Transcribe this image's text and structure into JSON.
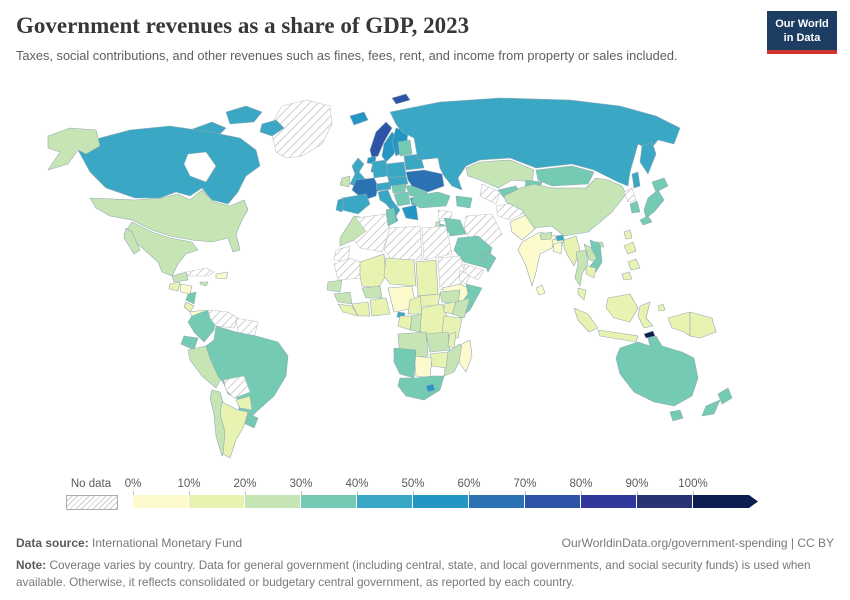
{
  "header": {
    "title": "Government revenues as a share of GDP, 2023",
    "subtitle": "Taxes, social contributions, and other revenues such as fines, fees, rent, and income from property or sales included.",
    "logo": {
      "line1": "Our World",
      "line2": "in Data"
    }
  },
  "chart_data": {
    "type": "choropleth",
    "title": "Government revenues as a share of GDP, 2023",
    "year": 2023,
    "unit": "% of GDP",
    "legend": {
      "no_data_label": "No data",
      "tick_labels": [
        "0%",
        "10%",
        "20%",
        "30%",
        "40%",
        "50%",
        "60%",
        "70%",
        "80%",
        "90%",
        "100%"
      ],
      "bin_colors": [
        "#fdfbcd",
        "#e9f3b1",
        "#c7e5b4",
        "#74cab3",
        "#3aa7c5",
        "#2496c3",
        "#2a72b4",
        "#2d54a6",
        "#30389b",
        "#293273",
        "#0e1d50"
      ],
      "open_ended_top": true
    },
    "countries": {
      "greenland": -1,
      "canada": 4,
      "usa": 2,
      "mexico": 2,
      "guatemala": 1,
      "honduras": 0,
      "nicaragua": 3,
      "costa_rica": 1,
      "panama": 0,
      "cuba": -1,
      "hispaniola": 0,
      "jamaica": 2,
      "colombia": 3,
      "venezuela": -1,
      "guyanas": -1,
      "ecuador": 3,
      "peru": 2,
      "brazil": 3,
      "bolivia": -1,
      "paraguay": 1,
      "chile": 2,
      "argentina": 1,
      "uruguay": 3,
      "iceland": 5,
      "svalbard": 7,
      "norway": 7,
      "sweden": 5,
      "finland": 5,
      "denmark": 5,
      "uk": 4,
      "ireland": 2,
      "benelux": 5,
      "germany": 4,
      "france": 6,
      "spain": 4,
      "portugal": 4,
      "italy": 4,
      "alpine": 4,
      "poland": 4,
      "czech_slovakia": 4,
      "hungary": 3,
      "balkans": 3,
      "greece": 5,
      "romania": 3,
      "bulgaria": 4,
      "baltics": 3,
      "belarus": 4,
      "ukraine": 6,
      "russia": 4,
      "kazakhstan": 2,
      "uzbekistan": 3,
      "turkmenistan": -1,
      "kyrgyzstan": 3,
      "tajikistan": 3,
      "caucasus": 3,
      "turkey": 3,
      "syria": -1,
      "israel": 2,
      "jordan": 3,
      "iraq": 3,
      "iran": -1,
      "saudi_arabia": 3,
      "yemen": -1,
      "oman": 3,
      "uae_qatar": 3,
      "afghanistan": -1,
      "pakistan": 0,
      "india": 0,
      "nepal": 2,
      "bhutan": 4,
      "bangladesh": 0,
      "sri_lanka": 0,
      "myanmar": 1,
      "thailand": 2,
      "laos": 2,
      "vietnam": 3,
      "cambodia": 1,
      "malaysia": 1,
      "china": 2,
      "hainan": 2,
      "mongolia": 3,
      "north_korea": -1,
      "south_korea": 3,
      "japan": 3,
      "taiwan": 1,
      "philippines": 1,
      "indonesia": 1,
      "papua_new_guinea": 1,
      "timor_leste": 10,
      "australia": 3,
      "new_zealand": 3,
      "morocco": 2,
      "western_sahara": -1,
      "algeria": -1,
      "tunisia": 3,
      "libya": -1,
      "egypt": -1,
      "mauritania": -1,
      "mali": 1,
      "senegal": 2,
      "guinea": 2,
      "sierra_leone_liberia": 1,
      "ivory_coast": 1,
      "burkina_faso": 2,
      "ghana_togo_benin": 1,
      "niger": 1,
      "nigeria": 0,
      "chad": 1,
      "sudan": -1,
      "eritrea": -1,
      "ethiopia": 0,
      "somalia": 3,
      "south_sudan": 2,
      "central_african_republic": 1,
      "cameroon": 1,
      "equatorial_guinea": 4,
      "gabon": 1,
      "congo": 2,
      "drc": 1,
      "uganda": 1,
      "kenya": 2,
      "tanzania": 1,
      "angola": 2,
      "zambia": 2,
      "malawi": 1,
      "mozambique": 2,
      "zimbabwe": 1,
      "botswana": 0,
      "namibia": 3,
      "south_africa": 3,
      "lesotho": 5,
      "madagascar": 0
    }
  },
  "footer": {
    "datasource_label": "Data source:",
    "datasource": "International Monetary Fund",
    "link": "OurWorldinData.org/government-spending | CC BY",
    "note_label": "Note:",
    "note": "Coverage varies by country. Data for general government (including central, state, and local governments, and social security funds) is used when available. Otherwise, it reflects consolidated or budgetary central government, as reported by each country."
  }
}
